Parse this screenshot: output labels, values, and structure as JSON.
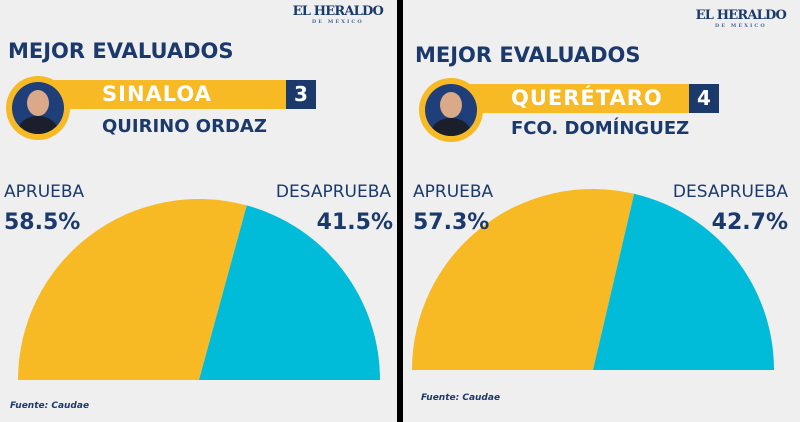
{
  "logo": {
    "main": "EL HERALDO",
    "sub": "DE MÉXICO"
  },
  "panels": [
    {
      "title": "MEJOR EVALUADOS",
      "state": "SINALOA",
      "rank": "3",
      "name": "QUIRINO ORDAZ",
      "approve_label": "APRUEBA",
      "disapprove_label": "DESAPRUEBA",
      "approve_text": "58.5%",
      "disapprove_text": "41.5%",
      "source": "Fuente: Caudae"
    },
    {
      "title": "MEJOR EVALUADOS",
      "state": "QUERÉTARO",
      "rank": "4",
      "name": "FCO. DOMÍNGUEZ",
      "approve_label": "APRUEBA",
      "disapprove_label": "DESAPRUEBA",
      "approve_text": "57.3%",
      "disapprove_text": "42.7%",
      "source": "Fuente: Caudae"
    }
  ],
  "colors": {
    "approve": "#f7b924",
    "disapprove": "#00bcd9",
    "navy": "#1b3a6b"
  },
  "chart_data": [
    {
      "type": "pie",
      "title": "SINALOA - QUIRINO ORDAZ",
      "categories": [
        "APRUEBA",
        "DESAPRUEBA"
      ],
      "values": [
        58.5,
        41.5
      ],
      "shape": "half-pie"
    },
    {
      "type": "pie",
      "title": "QUERÉTARO - FCO. DOMÍNGUEZ",
      "categories": [
        "APRUEBA",
        "DESAPRUEBA"
      ],
      "values": [
        57.3,
        42.7
      ],
      "shape": "half-pie"
    }
  ]
}
